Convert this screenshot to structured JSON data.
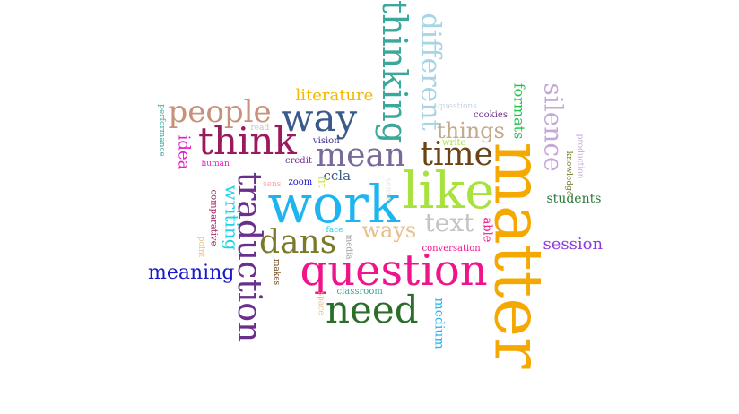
{
  "words": [
    {
      "text": "matter",
      "color": "#f5a800"
    },
    {
      "text": "question",
      "color": "#f0148c"
    },
    {
      "text": "work",
      "color": "#1eb4f0"
    },
    {
      "text": "like",
      "color": "#a8e23c"
    },
    {
      "text": "need",
      "color": "#2a6e2a"
    },
    {
      "text": "think",
      "color": "#9b1a5e"
    },
    {
      "text": "way",
      "color": "#3a5a8c"
    },
    {
      "text": "time",
      "color": "#6a4416"
    },
    {
      "text": "mean",
      "color": "#7a6a9a"
    },
    {
      "text": "thinking",
      "color": "#3aa89a"
    },
    {
      "text": "traduction",
      "color": "#6a2e8c"
    },
    {
      "text": "people",
      "color": "#c8927a"
    },
    {
      "text": "dans",
      "color": "#7a7a2a"
    },
    {
      "text": "silence",
      "color": "#c4a8d8"
    },
    {
      "text": "different",
      "color": "#a8d4e4"
    },
    {
      "text": "text",
      "color": "#c4c4c4"
    },
    {
      "text": "ways",
      "color": "#e6c08a"
    },
    {
      "text": "things",
      "color": "#c4a88a"
    },
    {
      "text": "literature",
      "color": "#f5b800"
    },
    {
      "text": "meaning",
      "color": "#1a1acc"
    },
    {
      "text": "writing",
      "color": "#1ed4e6"
    },
    {
      "text": "session",
      "color": "#8c3ae0"
    },
    {
      "text": "formats",
      "color": "#1ec44a"
    },
    {
      "text": "students",
      "color": "#2a7a3a"
    },
    {
      "text": "idea",
      "color": "#e61ec4"
    },
    {
      "text": "ccla",
      "color": "#3a5a8c"
    },
    {
      "text": "medium",
      "color": "#1eb4f0"
    },
    {
      "text": "able",
      "color": "#f0148c"
    },
    {
      "text": "performance",
      "color": "#3aa89a"
    },
    {
      "text": "read",
      "color": "#c4c4c4"
    },
    {
      "text": "questions",
      "color": "#c4d4e4"
    },
    {
      "text": "cookies",
      "color": "#6a2e8c"
    },
    {
      "text": "write",
      "color": "#a8e23c"
    },
    {
      "text": "vision",
      "color": "#3a2a8c"
    },
    {
      "text": "credit",
      "color": "#6a2e8c"
    },
    {
      "text": "human",
      "color": "#e61ec4"
    },
    {
      "text": "zoom",
      "color": "#1a1acc"
    },
    {
      "text": "sens",
      "color": "#f5a8a8"
    },
    {
      "text": "fit",
      "color": "#c4e43a"
    },
    {
      "text": "sense",
      "color": "#e4e4e4"
    },
    {
      "text": "comparative",
      "color": "#9b1a5e"
    },
    {
      "text": "face",
      "color": "#1ed4e6"
    },
    {
      "text": "media",
      "color": "#9a9a9a"
    },
    {
      "text": "point",
      "color": "#e6c08a"
    },
    {
      "text": "makes",
      "color": "#6a4416"
    },
    {
      "text": "space",
      "color": "#e6c08a"
    },
    {
      "text": "classroom",
      "color": "#3aa89a"
    },
    {
      "text": "conversation",
      "color": "#f0148c"
    },
    {
      "text": "knowledge",
      "color": "#7a7a2a"
    },
    {
      "text": "production",
      "color": "#c4a8d8"
    }
  ]
}
